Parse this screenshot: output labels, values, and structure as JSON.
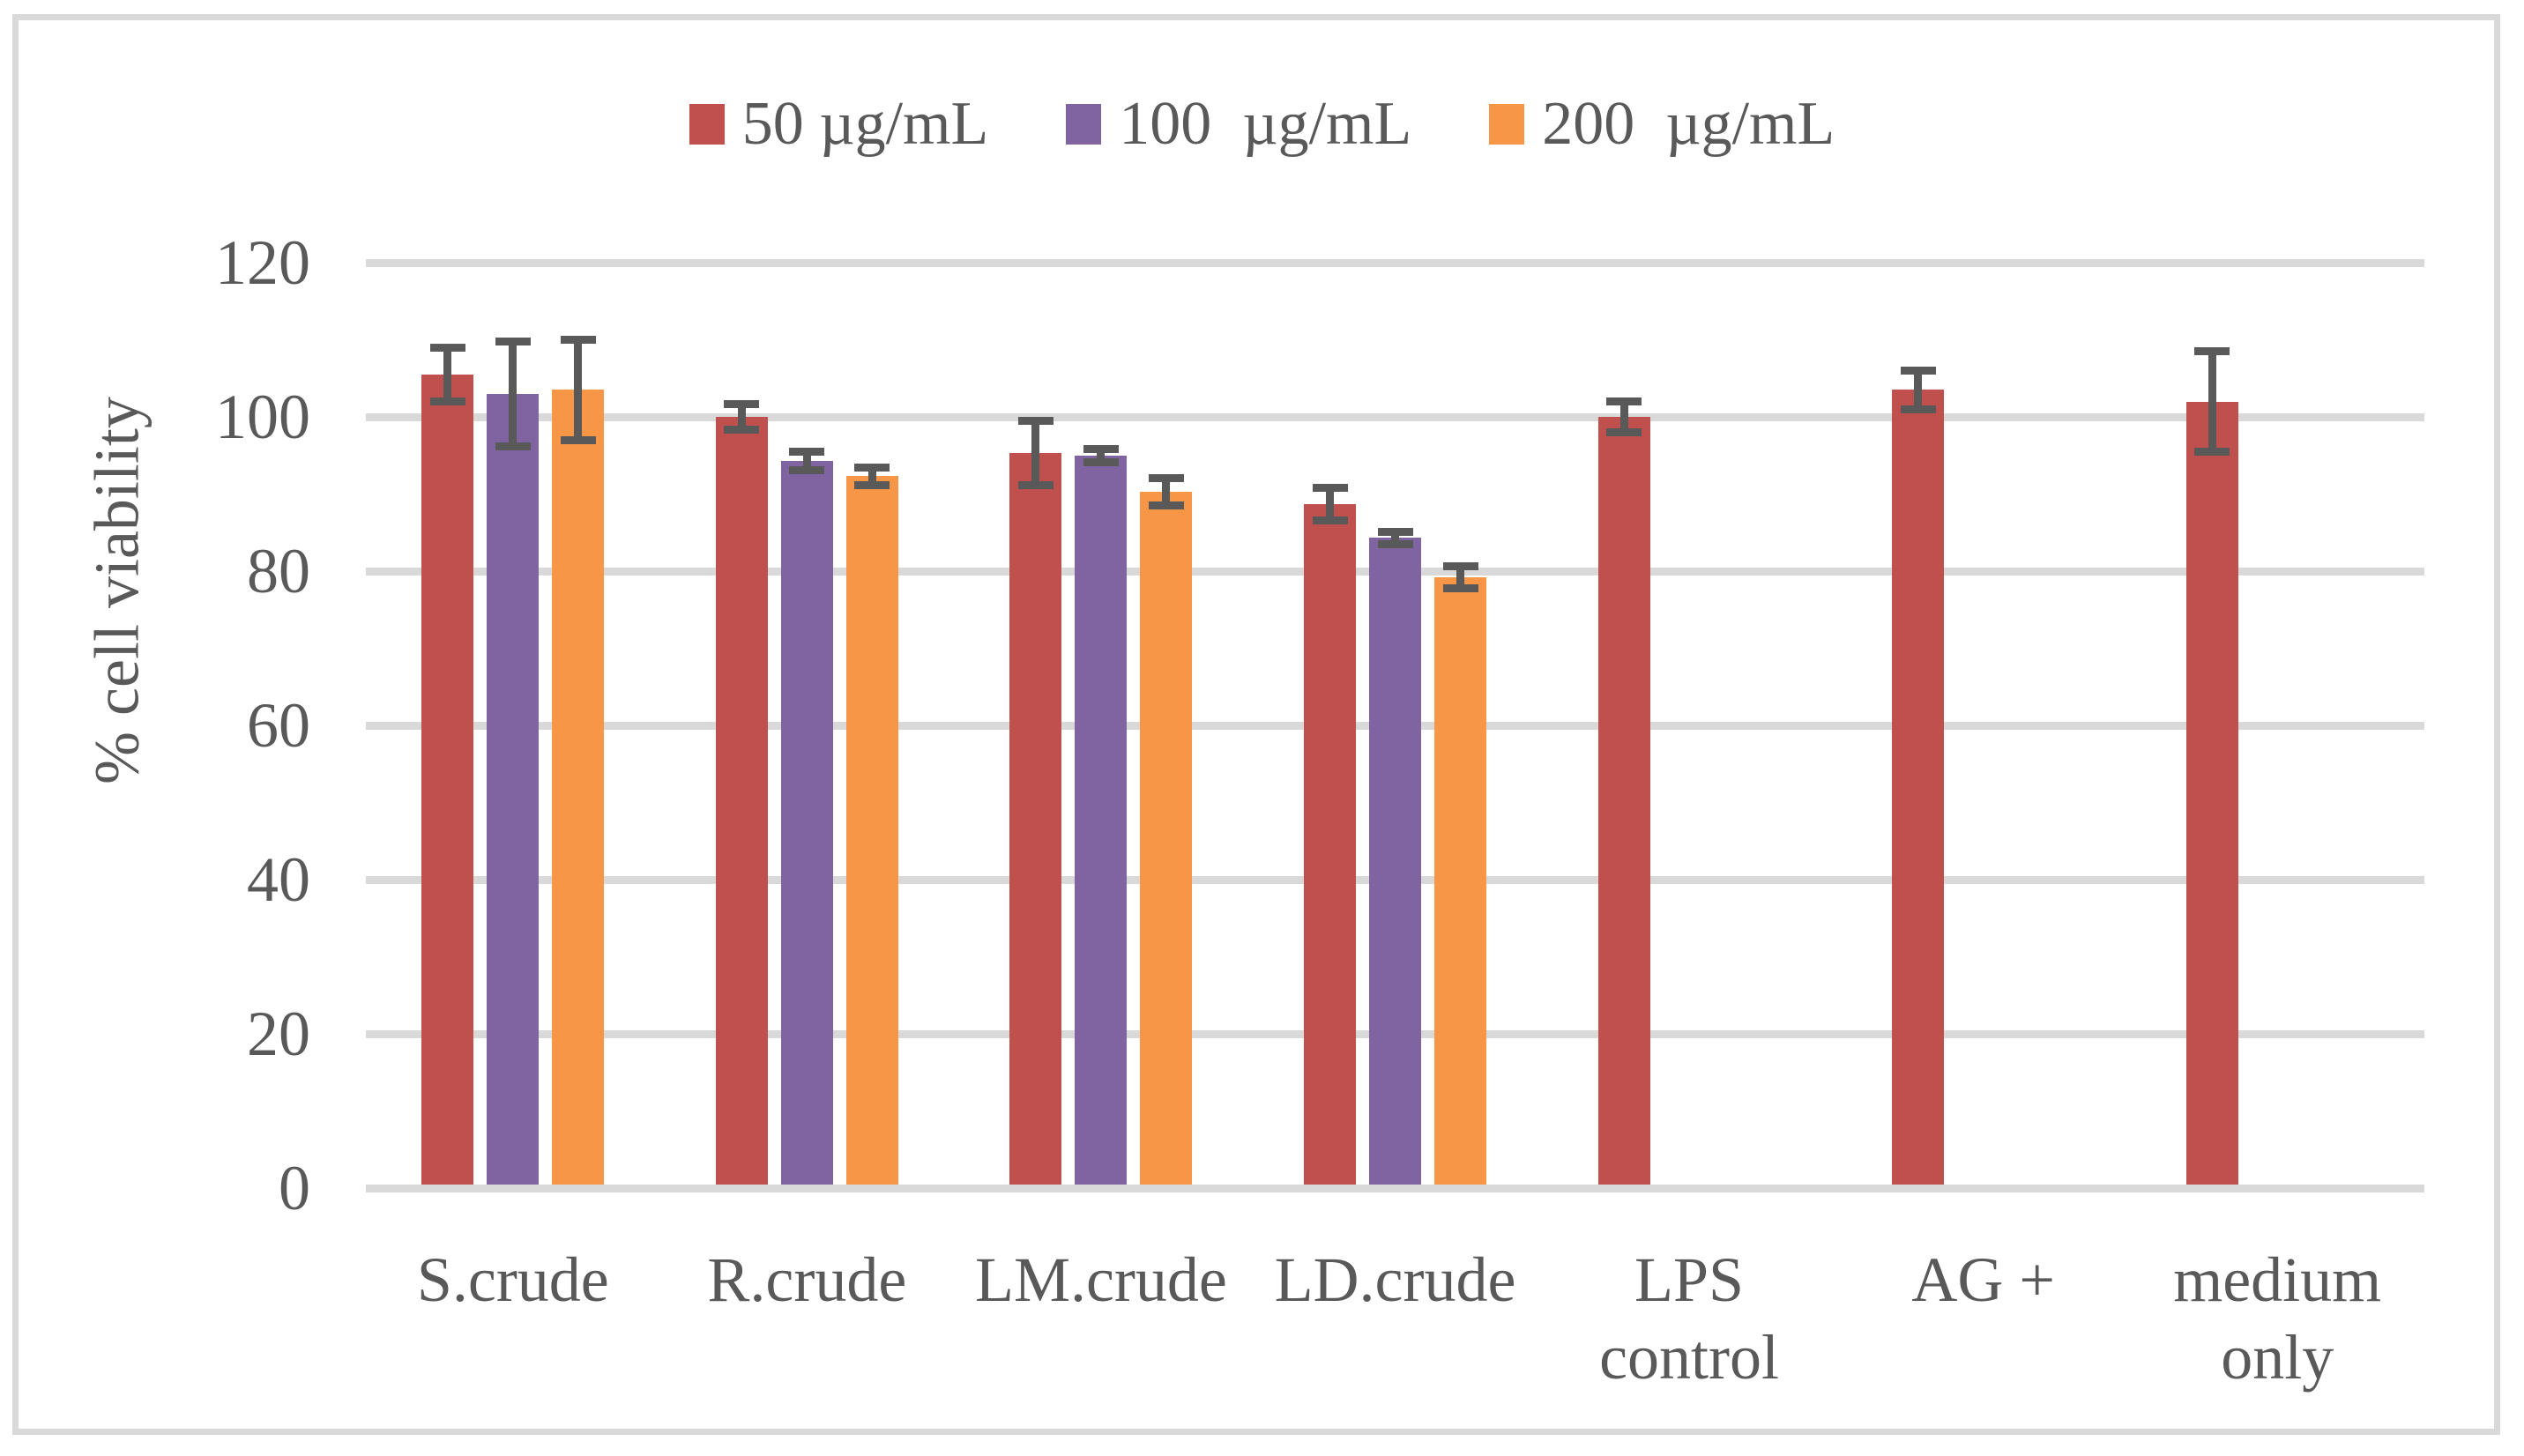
{
  "chart_data": {
    "type": "bar",
    "ylabel": "% cell viability",
    "ylim": [
      0,
      120
    ],
    "yticks": [
      0,
      20,
      40,
      60,
      80,
      100,
      120
    ],
    "grid": true,
    "legend_position": "top",
    "categories": [
      "S.crude",
      "R.crude",
      "LM.crude",
      "LD.crude",
      "LPS\ncontrol",
      "AG +",
      "medium\nonly"
    ],
    "series": [
      {
        "name": "50 µg/mL",
        "color": "#C0504D",
        "values": [
          105.5,
          100,
          95.3,
          88.7,
          100,
          103.5,
          102
        ],
        "errors": [
          4,
          2.2,
          4.7,
          2.6,
          2.5,
          3,
          7
        ]
      },
      {
        "name": "100  µg/mL",
        "color": "#8064A2",
        "values": [
          103,
          94.3,
          95,
          84.3,
          null,
          null,
          null
        ],
        "errors": [
          7.3,
          1.7,
          1.4,
          1.3,
          null,
          null,
          null
        ]
      },
      {
        "name": "200  µg/mL",
        "color": "#F79646",
        "values": [
          103.5,
          92.3,
          90.3,
          79.2,
          null,
          null,
          null
        ],
        "errors": [
          7,
          1.7,
          2.3,
          1.9,
          null,
          null,
          null
        ]
      }
    ],
    "colors": {
      "error_bar": "#595959",
      "gridline": "#D9D9D9",
      "text": "#595959",
      "figure_border": "#D9D9D9",
      "background": "#FFFFFF"
    }
  }
}
